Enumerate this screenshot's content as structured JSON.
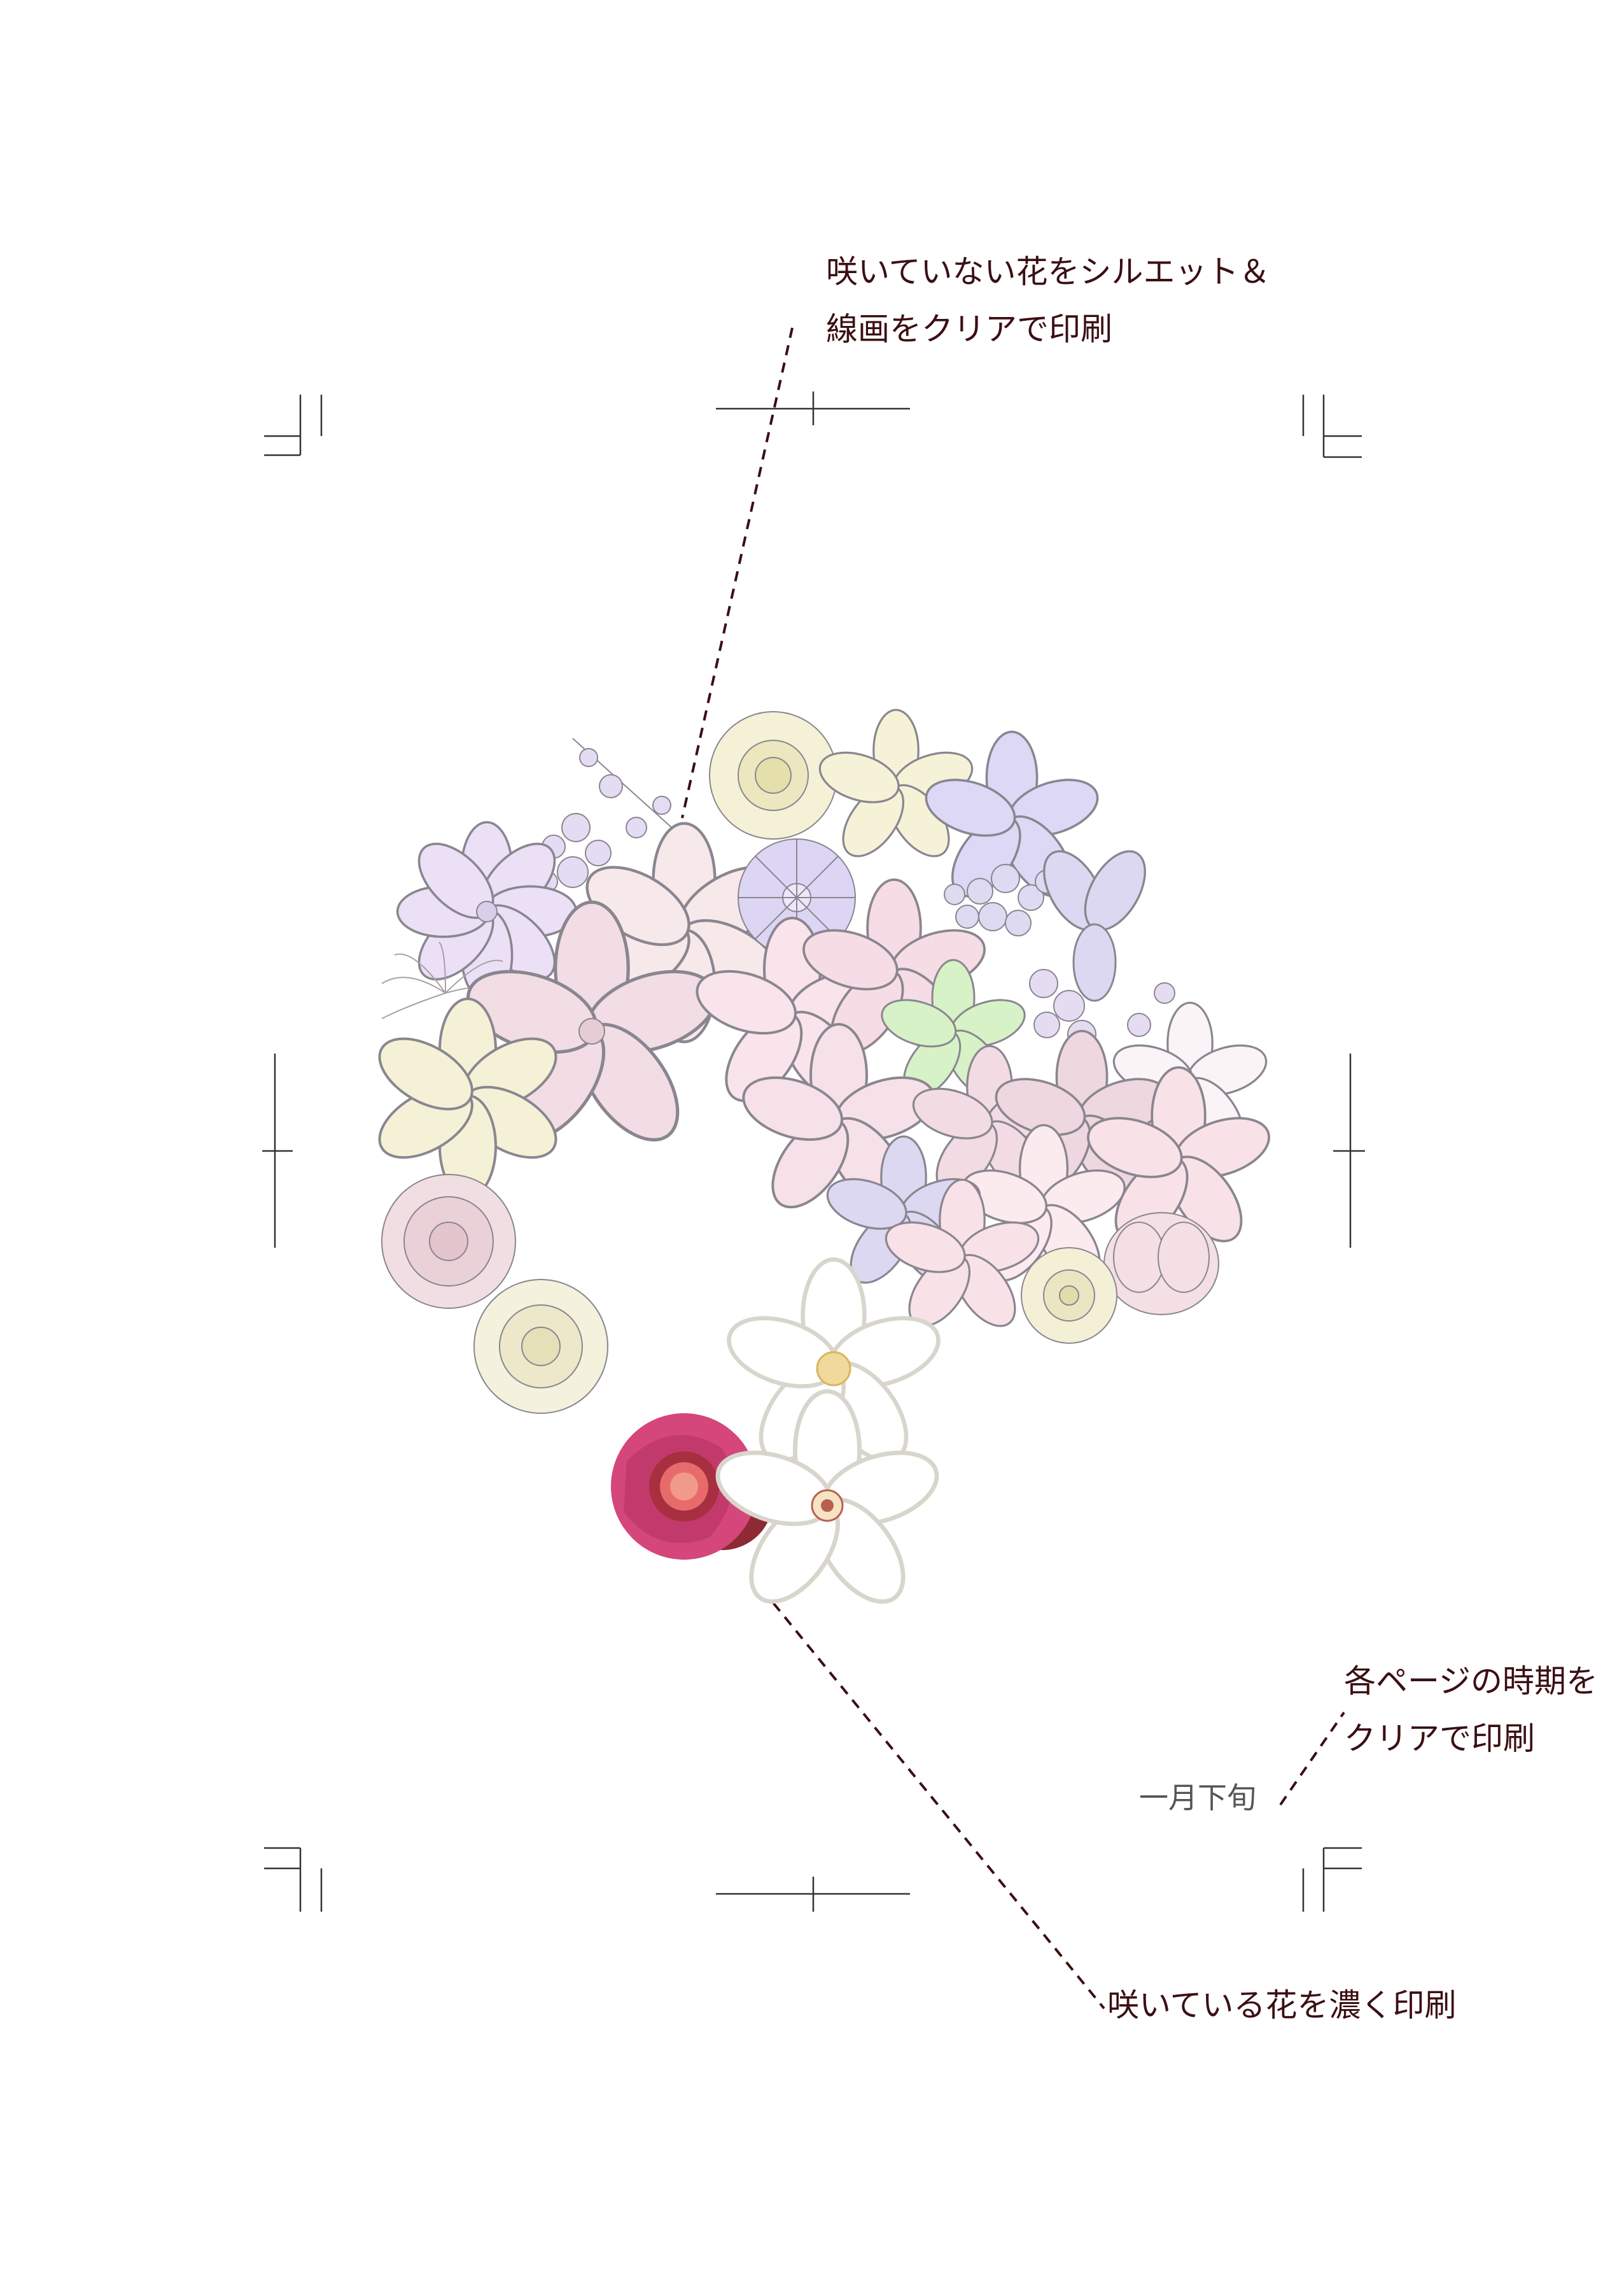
{
  "annotations": {
    "unbloomed_note": [
      "咲いていない花をシルエット＆",
      "線画をクリアで印刷"
    ],
    "period_note": [
      "各ページの時期を",
      "クリアで印刷"
    ],
    "bloomed_note": "咲いている花を濃く印刷"
  },
  "page": {
    "period_label": "一月下旬"
  },
  "colors": {
    "annotation_text": "#3b0f12",
    "leader_line": "#3b0f12",
    "crop_marks": "#333333",
    "camellia_red": "#d5467a",
    "pale_pink": "#f3dde3",
    "pale_purple": "#ddd6f3",
    "pale_yellow": "#f3f0d5",
    "pale_green": "#d4f2c4"
  },
  "icons": [
    "crop-mark",
    "registration-mark",
    "flower-illustration"
  ]
}
